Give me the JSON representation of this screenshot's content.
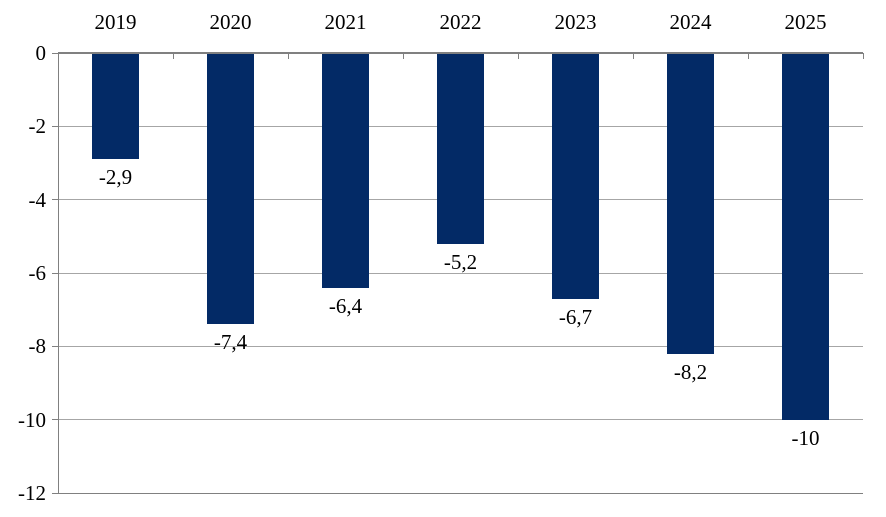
{
  "chart_data": {
    "type": "bar",
    "title": "",
    "xlabel": "",
    "ylabel": "",
    "categories": [
      "2019",
      "2020",
      "2021",
      "2022",
      "2023",
      "2024",
      "2025"
    ],
    "values": [
      -2.9,
      -7.4,
      -6.4,
      -5.2,
      -6.7,
      -8.2,
      -10
    ],
    "value_labels": [
      "-2,9",
      "-7,4",
      "-6,4",
      "-5,2",
      "-6,7",
      "-8,2",
      "-10"
    ],
    "y_ticks": [
      0,
      -2,
      -4,
      -6,
      -8,
      -10,
      -12
    ],
    "y_tick_labels": [
      "0",
      "-2",
      "-4",
      "-6",
      "-8",
      "-10",
      "-12"
    ],
    "ylim": [
      -12,
      0
    ],
    "grid": true,
    "legend": "none",
    "category_labels_position": "top",
    "colors": {
      "bar": "#032a66",
      "gridline": "#a6a6a6",
      "axis": "#808080",
      "label": "#000000",
      "background": "#ffffff"
    }
  }
}
